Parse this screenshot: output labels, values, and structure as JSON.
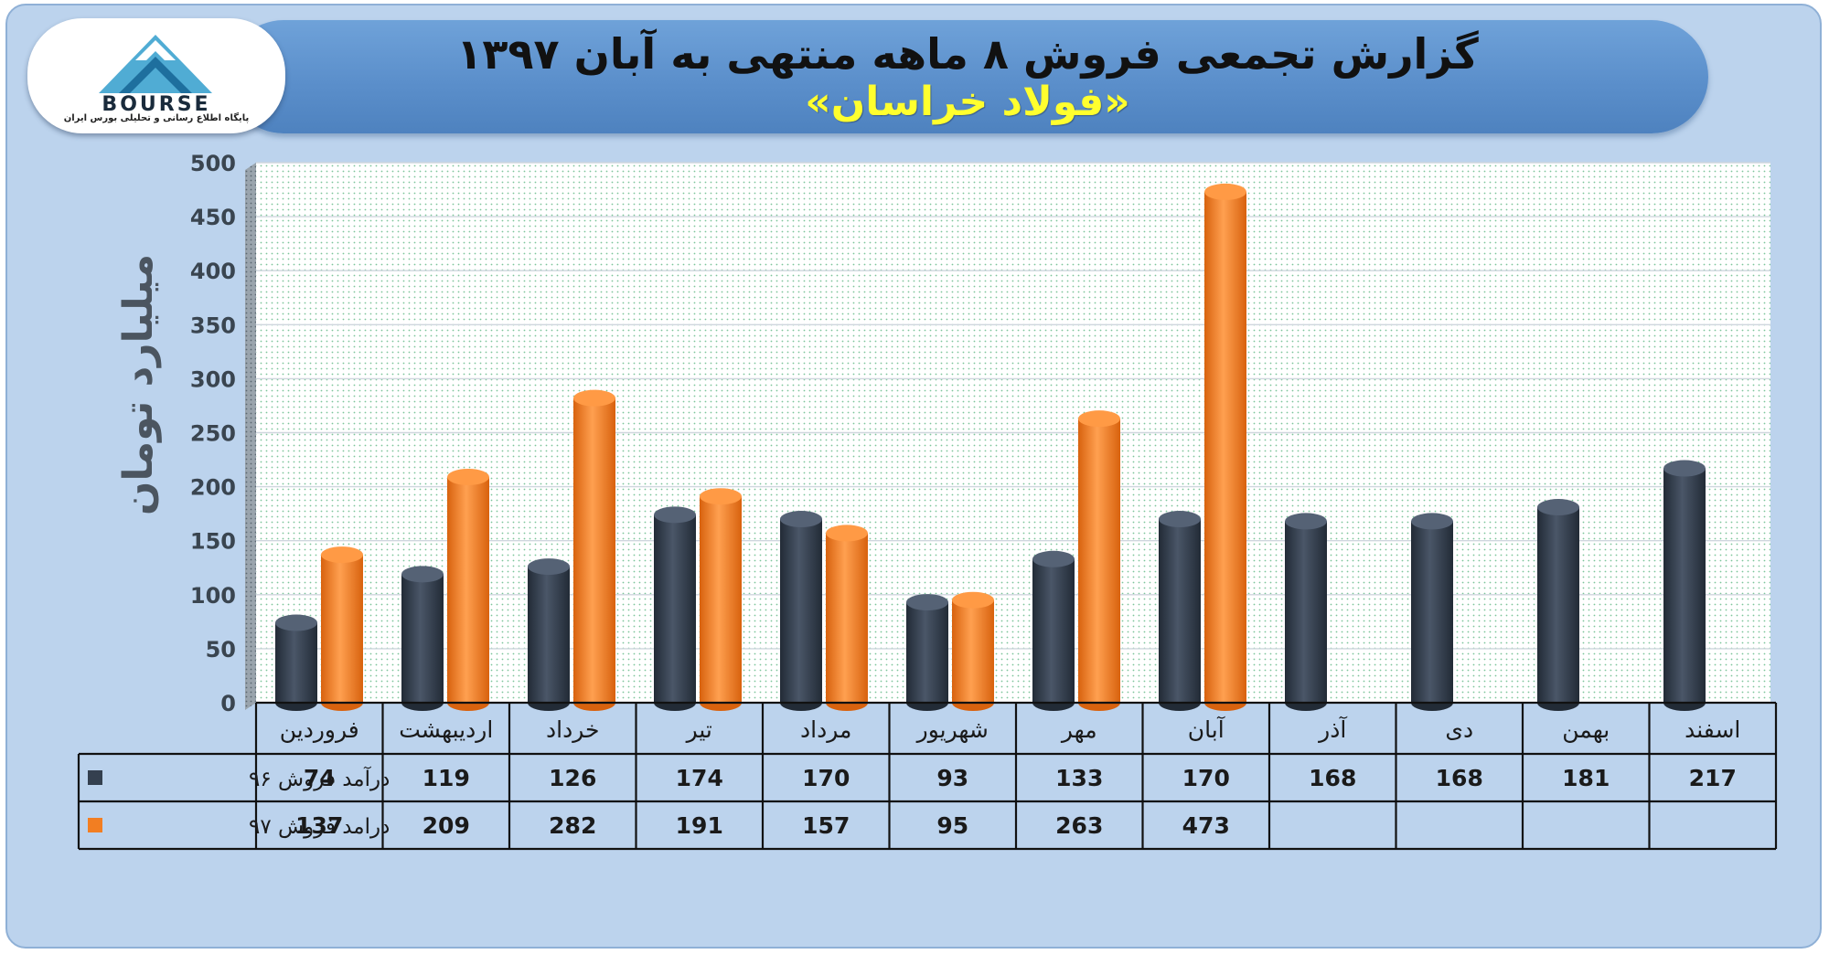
{
  "header": {
    "title": "گزارش تجمعی فروش ۸ ماهه منتهی به آبان ۱۳۹۷",
    "subtitle": "«فولاد خراسان»"
  },
  "logo": {
    "icon": "bourse-logo-icon",
    "text": "BOURSE",
    "caption": "پایگاه اطلاع رسانی و تحلیلی بورس ایران"
  },
  "colors": {
    "series_96": "#34404f",
    "series_97": "#f27e22",
    "plot_bg": "#ffffff",
    "grid": "#cfd6de",
    "frame_bg": "#bcd3ed"
  },
  "chart_data": {
    "type": "bar",
    "ylabel": "میلیارد تومان",
    "xlabel": "",
    "ylim": [
      0,
      500
    ],
    "ytick_step": 50,
    "categories": [
      "فروردین",
      "اردیبهشت",
      "خرداد",
      "تیر",
      "مرداد",
      "شهریور",
      "مهر",
      "آبان",
      "آذر",
      "دی",
      "بهمن",
      "اسفند"
    ],
    "series": [
      {
        "name": "درآمد فروش ۹۶",
        "color": "#34404f",
        "values": [
          74,
          119,
          126,
          174,
          170,
          93,
          133,
          170,
          168,
          168,
          181,
          217
        ]
      },
      {
        "name": "درامد فروش ۹۷",
        "color": "#f27e22",
        "values": [
          137,
          209,
          282,
          191,
          157,
          95,
          263,
          473,
          null,
          null,
          null,
          null
        ]
      }
    ],
    "grid": true,
    "data_table": true
  }
}
